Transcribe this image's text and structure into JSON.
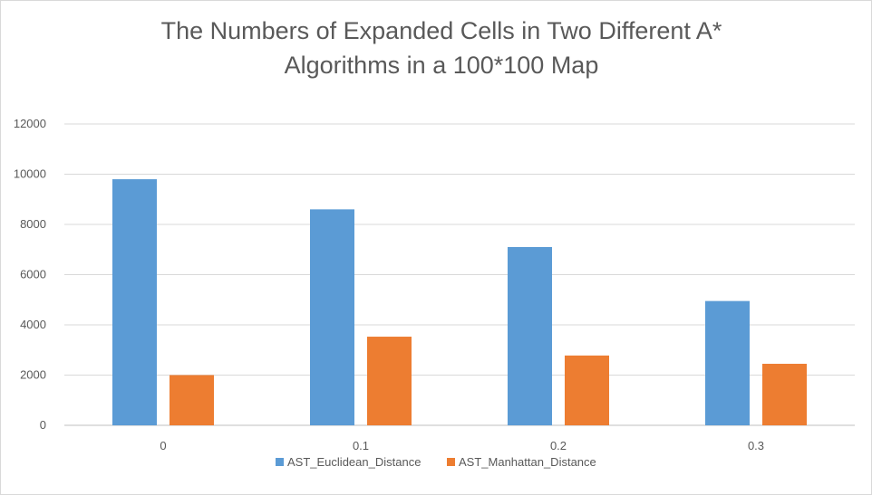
{
  "chart_data": {
    "type": "bar",
    "title": [
      "The Numbers of Expanded Cells in Two Different A*",
      "Algorithms in a 100*100 Map"
    ],
    "categories": [
      "0",
      "0.1",
      "0.2",
      "0.3"
    ],
    "series": [
      {
        "name": "AST_Euclidean_Distance",
        "color": "#5b9bd5",
        "values": [
          9800,
          8600,
          7100,
          4950
        ]
      },
      {
        "name": "AST_Manhattan_Distance",
        "color": "#ed7d31",
        "values": [
          2000,
          3530,
          2780,
          2450
        ]
      }
    ],
    "ylim": [
      0,
      12000
    ],
    "yticks": [
      0,
      2000,
      4000,
      6000,
      8000,
      10000,
      12000
    ],
    "grid": true,
    "legend": "bottom"
  }
}
